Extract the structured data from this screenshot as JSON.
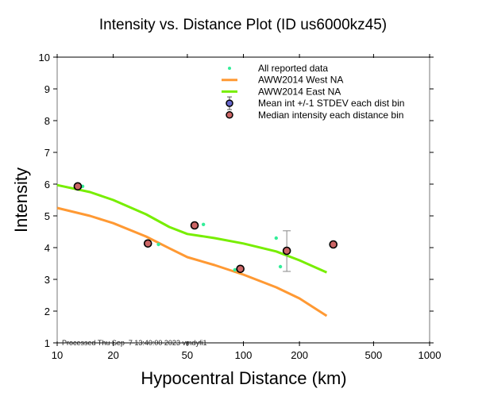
{
  "chart_data": {
    "type": "scatter",
    "title": "Intensity vs. Distance Plot (ID us6000kz45)",
    "xlabel": "Hypocentral Distance (km)",
    "ylabel": "Intensity",
    "xscale": "log",
    "xlim": [
      10,
      1000
    ],
    "ylim": [
      1,
      10
    ],
    "xticks": [
      10,
      20,
      50,
      100,
      200,
      500,
      1000
    ],
    "xtick_labels": [
      "10",
      "20",
      "50",
      "100",
      "200",
      "500",
      "1000"
    ],
    "yticks": [
      1,
      2,
      3,
      4,
      5,
      6,
      7,
      8,
      9,
      10
    ],
    "ytick_labels": [
      "1",
      "2",
      "3",
      "4",
      "5",
      "6",
      "7",
      "8",
      "9",
      "10"
    ],
    "grid": false,
    "legend_position": "top-right",
    "annotation": "Processed Thu Sep  7 13:40:00 2023 vmdyfi1",
    "series": [
      {
        "name": "All reported data",
        "kind": "points",
        "color": "#33ee99",
        "x": [
          13.7,
          35,
          61,
          90,
          150,
          158
        ],
        "y": [
          5.93,
          4.1,
          4.73,
          3.3,
          4.3,
          3.4
        ]
      },
      {
        "name": "AWW2014 West NA",
        "kind": "line",
        "color": "#ff9933",
        "x": [
          10,
          15,
          20,
          30,
          40,
          50,
          70,
          100,
          150,
          200,
          280
        ],
        "y": [
          5.25,
          5.0,
          4.77,
          4.35,
          3.98,
          3.7,
          3.45,
          3.15,
          2.75,
          2.4,
          1.85
        ]
      },
      {
        "name": "AWW2014 East NA",
        "kind": "line",
        "color": "#77ee00",
        "x": [
          10,
          15,
          20,
          30,
          40,
          50,
          70,
          100,
          150,
          200,
          280
        ],
        "y": [
          5.97,
          5.75,
          5.5,
          5.05,
          4.65,
          4.43,
          4.3,
          4.13,
          3.88,
          3.6,
          3.22
        ]
      },
      {
        "name": "Mean int +/-1 STDEV each dist bin",
        "kind": "errorbar",
        "color": "#6666cc",
        "x": [
          171
        ],
        "y": [
          3.9
        ],
        "yerr_low": [
          3.25
        ],
        "yerr_high": [
          4.53
        ]
      },
      {
        "name": "Median intensity each distance bin",
        "kind": "points",
        "color": "#cc6666",
        "x": [
          12.9,
          30.7,
          54.7,
          96.3,
          171,
          304
        ],
        "y": [
          5.93,
          4.13,
          4.7,
          3.33,
          3.9,
          4.1
        ]
      }
    ]
  },
  "legend": [
    {
      "label": "All reported data",
      "marker": "dot",
      "color": "#33ee99"
    },
    {
      "label": "AWW2014 West NA",
      "marker": "line",
      "color": "#ff9933"
    },
    {
      "label": "AWW2014 East NA",
      "marker": "line",
      "color": "#77ee00"
    },
    {
      "label": "Mean int +/-1 STDEV each dist bin",
      "marker": "circle-errorbar",
      "color": "#6666cc"
    },
    {
      "label": "Median intensity each distance bin",
      "marker": "circle",
      "color": "#cc6666"
    }
  ]
}
